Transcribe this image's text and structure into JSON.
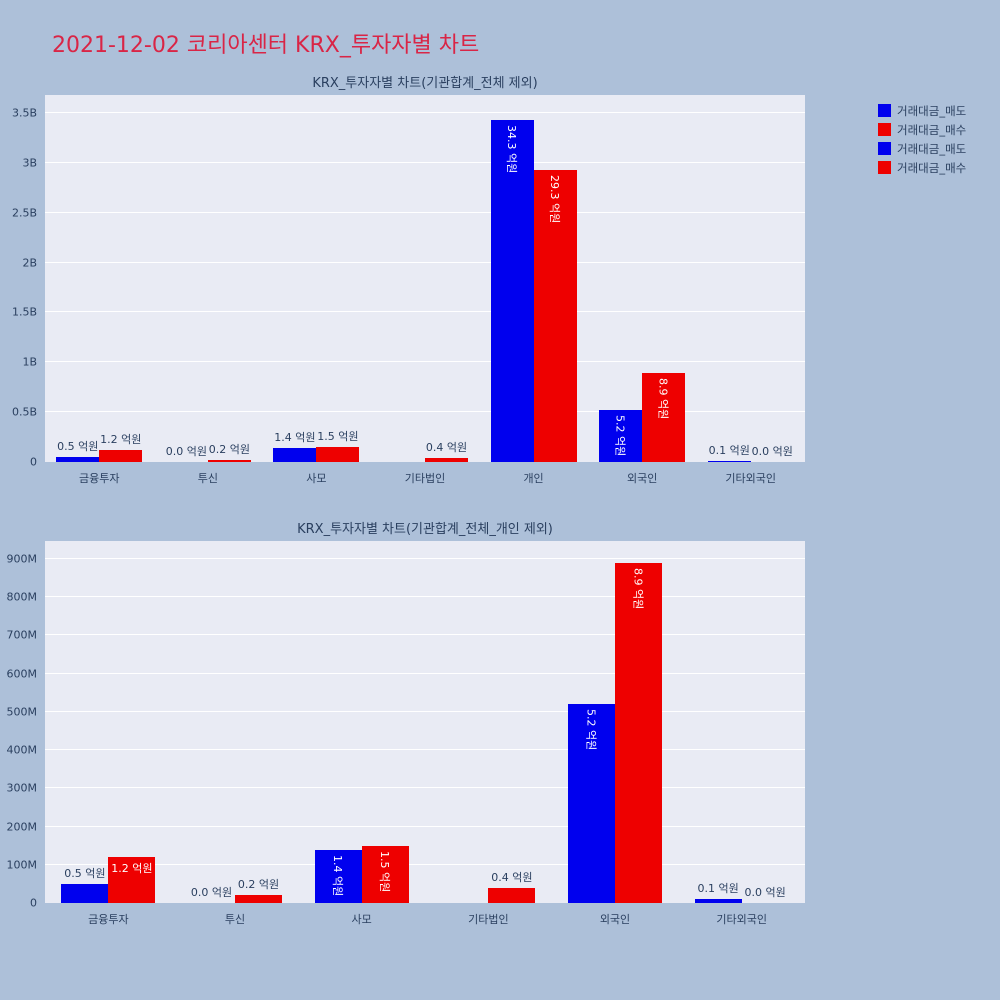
{
  "page": {
    "title": "2021-12-02 코리아센터 KRX_투자자별 차트",
    "title_color": "#d92546",
    "background_color": "#adc0d9",
    "plot_background_color": "#e9ebf4"
  },
  "legend": {
    "items": [
      {
        "label": "거래대금_매도",
        "color": "#0000ee"
      },
      {
        "label": "거래대금_매수",
        "color": "#ee0000"
      },
      {
        "label": "거래대금_매도",
        "color": "#0000ee"
      },
      {
        "label": "거래대금_매수",
        "color": "#ee0000"
      }
    ]
  },
  "chart_data": [
    {
      "type": "bar",
      "title": "KRX_투자자별 차트(기관합계_전체 제외)",
      "xlabel": "",
      "ylabel": "",
      "unit": "억원",
      "grid": true,
      "legend_position": "top-right",
      "categories": [
        "금융투자",
        "투신",
        "사모",
        "기타법인",
        "개인",
        "외국인",
        "기타외국인"
      ],
      "ylim": [
        0,
        3500000000
      ],
      "yticks": [
        {
          "label": "0",
          "value": 0
        },
        {
          "label": "0.5B",
          "value": 500000000
        },
        {
          "label": "1B",
          "value": 1000000000
        },
        {
          "label": "1.5B",
          "value": 1500000000
        },
        {
          "label": "2B",
          "value": 2000000000
        },
        {
          "label": "2.5B",
          "value": 2500000000
        },
        {
          "label": "3B",
          "value": 3000000000
        },
        {
          "label": "3.5B",
          "value": 3500000000
        }
      ],
      "series": [
        {
          "name": "거래대금_매도",
          "color": "#0000ee",
          "values": [
            50000000,
            0,
            140000000,
            0,
            3430000000,
            520000000,
            10000000
          ],
          "labels": [
            "0.5 억원",
            "0.0 억원",
            "1.4 억원",
            "",
            "34.3 억원",
            "5.2 억원",
            "0.1 억원"
          ],
          "label_modes": [
            "out",
            "out",
            "out",
            "none",
            "in-v",
            "in-v",
            "out"
          ]
        },
        {
          "name": "거래대금_매수",
          "color": "#ee0000",
          "values": [
            120000000,
            20000000,
            150000000,
            40000000,
            2930000000,
            890000000,
            0
          ],
          "labels": [
            "1.2 억원",
            "0.2 억원",
            "1.5 억원",
            "0.4 억원",
            "29.3 억원",
            "8.9 억원",
            "0.0 억원"
          ],
          "label_modes": [
            "out",
            "out",
            "out",
            "out",
            "in-v",
            "in-v",
            "out"
          ]
        }
      ]
    },
    {
      "type": "bar",
      "title": "KRX_투자자별 차트(기관합계_전체_개인 제외)",
      "xlabel": "",
      "ylabel": "",
      "unit": "억원",
      "grid": true,
      "legend_position": "top-right",
      "categories": [
        "금융투자",
        "투신",
        "사모",
        "기타법인",
        "외국인",
        "기타외국인"
      ],
      "ylim": [
        0,
        900000000
      ],
      "yticks": [
        {
          "label": "0",
          "value": 0
        },
        {
          "label": "100M",
          "value": 100000000
        },
        {
          "label": "200M",
          "value": 200000000
        },
        {
          "label": "300M",
          "value": 300000000
        },
        {
          "label": "400M",
          "value": 400000000
        },
        {
          "label": "500M",
          "value": 500000000
        },
        {
          "label": "600M",
          "value": 600000000
        },
        {
          "label": "700M",
          "value": 700000000
        },
        {
          "label": "800M",
          "value": 800000000
        },
        {
          "label": "900M",
          "value": 900000000
        }
      ],
      "series": [
        {
          "name": "거래대금_매도",
          "color": "#0000ee",
          "values": [
            50000000,
            0,
            140000000,
            0,
            520000000,
            10000000
          ],
          "labels": [
            "0.5 억원",
            "0.0 억원",
            "1.4 억원",
            "",
            "5.2 억원",
            "0.1 억원"
          ],
          "label_modes": [
            "out",
            "out",
            "in-v",
            "none",
            "in-v",
            "out"
          ]
        },
        {
          "name": "거래대금_매수",
          "color": "#ee0000",
          "values": [
            120000000,
            20000000,
            150000000,
            40000000,
            890000000,
            0
          ],
          "labels": [
            "1.2 억원",
            "0.2 억원",
            "1.5 억원",
            "0.4 억원",
            "8.9 억원",
            "0.0 억원"
          ],
          "label_modes": [
            "in-h",
            "out",
            "in-v",
            "out",
            "in-v",
            "out"
          ]
        }
      ]
    }
  ]
}
